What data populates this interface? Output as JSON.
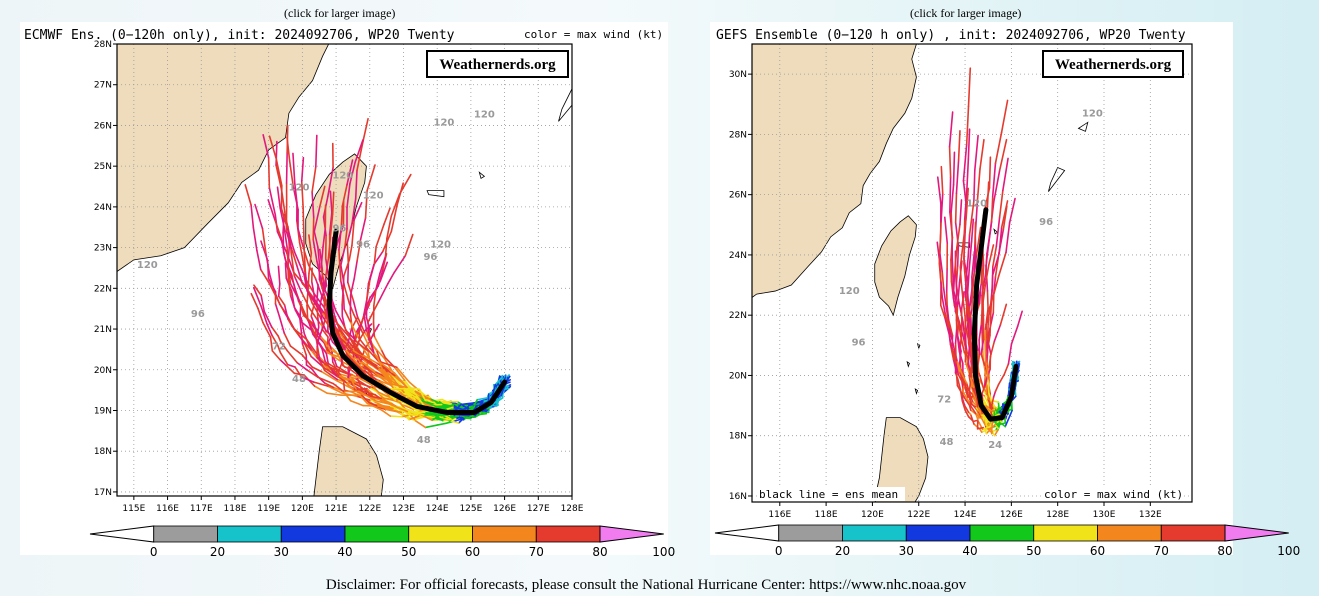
{
  "disclaimer": "Disclaimer: For official forecasts, please consult the National Hurricane Center: https://www.nhc.noaa.gov",
  "colors": {
    "land": "#efdcbc",
    "ocean": "#ffffff",
    "mean_track": "#000000"
  },
  "colorbar": {
    "labels": [
      "0",
      "20",
      "30",
      "40",
      "50",
      "60",
      "70",
      "80",
      "100"
    ],
    "colors": [
      "#9c9c9c",
      "#16c3cb",
      "#1238e0",
      "#11c81b",
      "#f0e31a",
      "#f4861e",
      "#e53a2e",
      "#e2187d",
      "#f07cf0"
    ]
  },
  "chart_data": [
    {
      "type": "line",
      "click_note": "(click for larger image)",
      "title": "ECMWF Ens. (0−120h only), init: 2024092706, WP20 Twenty",
      "legend_text": "color = max wind (kt)",
      "watermark": "Weathernerds.org",
      "xlim": [
        114.5,
        128
      ],
      "ylim": [
        16.9,
        28
      ],
      "x_ticks": [
        "115E",
        "116E",
        "117E",
        "118E",
        "119E",
        "120E",
        "121E",
        "122E",
        "123E",
        "124E",
        "125E",
        "126E",
        "127E",
        "128E"
      ],
      "y_ticks": [
        "17N",
        "18N",
        "19N",
        "20N",
        "21N",
        "22N",
        "23N",
        "24N",
        "25N",
        "26N",
        "27N",
        "28N"
      ],
      "hour_labels": [
        {
          "text": "120",
          "lon": 115.4,
          "lat": 22.5
        },
        {
          "text": "96",
          "lon": 116.9,
          "lat": 21.3
        },
        {
          "text": "120",
          "lon": 119.9,
          "lat": 24.4
        },
        {
          "text": "120",
          "lon": 121.2,
          "lat": 24.7
        },
        {
          "text": "120",
          "lon": 122.1,
          "lat": 24.2
        },
        {
          "text": "120",
          "lon": 124.2,
          "lat": 26.0
        },
        {
          "text": "120",
          "lon": 125.4,
          "lat": 26.2
        },
        {
          "text": "120",
          "lon": 124.1,
          "lat": 23.0
        },
        {
          "text": "96",
          "lon": 123.8,
          "lat": 22.7
        },
        {
          "text": "96",
          "lon": 121.1,
          "lat": 23.4
        },
        {
          "text": "96",
          "lon": 121.8,
          "lat": 23.0
        },
        {
          "text": "48",
          "lon": 119.9,
          "lat": 19.7
        },
        {
          "text": "48",
          "lon": 123.6,
          "lat": 18.2
        },
        {
          "text": "72",
          "lon": 119.3,
          "lat": 20.5
        }
      ],
      "mean_track": [
        {
          "lon": 126.0,
          "lat": 19.7
        },
        {
          "lon": 125.6,
          "lat": 19.2
        },
        {
          "lon": 125.1,
          "lat": 18.95
        },
        {
          "lon": 124.3,
          "lat": 18.95
        },
        {
          "lon": 123.4,
          "lat": 19.1
        },
        {
          "lon": 122.6,
          "lat": 19.45
        },
        {
          "lon": 121.8,
          "lat": 19.85
        },
        {
          "lon": 121.2,
          "lat": 20.35
        },
        {
          "lon": 120.9,
          "lat": 20.9
        },
        {
          "lon": 120.8,
          "lat": 21.6
        },
        {
          "lon": 120.85,
          "lat": 22.4
        },
        {
          "lon": 121.0,
          "lat": 23.4
        }
      ]
    },
    {
      "type": "line",
      "click_note": "(click for larger image)",
      "title": "GEFS Ensemble (0−120 h only) , init: 2024092706, WP20 Twenty",
      "legend_text": "color = max wind (kt)",
      "mean_label": "black line = ens mean",
      "watermark": "Weathernerds.org",
      "xlim": [
        114.8,
        133.8
      ],
      "ylim": [
        15.8,
        31
      ],
      "x_ticks": [
        "116E",
        "118E",
        "120E",
        "122E",
        "124E",
        "126E",
        "128E",
        "130E",
        "132E"
      ],
      "y_ticks": [
        "16N",
        "18N",
        "20N",
        "22N",
        "24N",
        "26N",
        "28N",
        "30N"
      ],
      "hour_labels": [
        {
          "text": "120",
          "lon": 119.0,
          "lat": 22.7
        },
        {
          "text": "96",
          "lon": 119.4,
          "lat": 21.0
        },
        {
          "text": "120",
          "lon": 129.5,
          "lat": 28.6
        },
        {
          "text": "96",
          "lon": 127.5,
          "lat": 25.0
        },
        {
          "text": "120",
          "lon": 124.5,
          "lat": 25.6
        },
        {
          "text": "72",
          "lon": 123.1,
          "lat": 19.1
        },
        {
          "text": "48",
          "lon": 123.2,
          "lat": 17.7
        },
        {
          "text": "24",
          "lon": 125.3,
          "lat": 17.6
        }
      ],
      "mean_track": [
        {
          "lon": 126.2,
          "lat": 20.3
        },
        {
          "lon": 126.0,
          "lat": 19.3
        },
        {
          "lon": 125.6,
          "lat": 18.6
        },
        {
          "lon": 125.1,
          "lat": 18.55
        },
        {
          "lon": 124.7,
          "lat": 19.0
        },
        {
          "lon": 124.45,
          "lat": 20.0
        },
        {
          "lon": 124.4,
          "lat": 21.4
        },
        {
          "lon": 124.5,
          "lat": 23.0
        },
        {
          "lon": 124.9,
          "lat": 25.5
        }
      ]
    }
  ]
}
